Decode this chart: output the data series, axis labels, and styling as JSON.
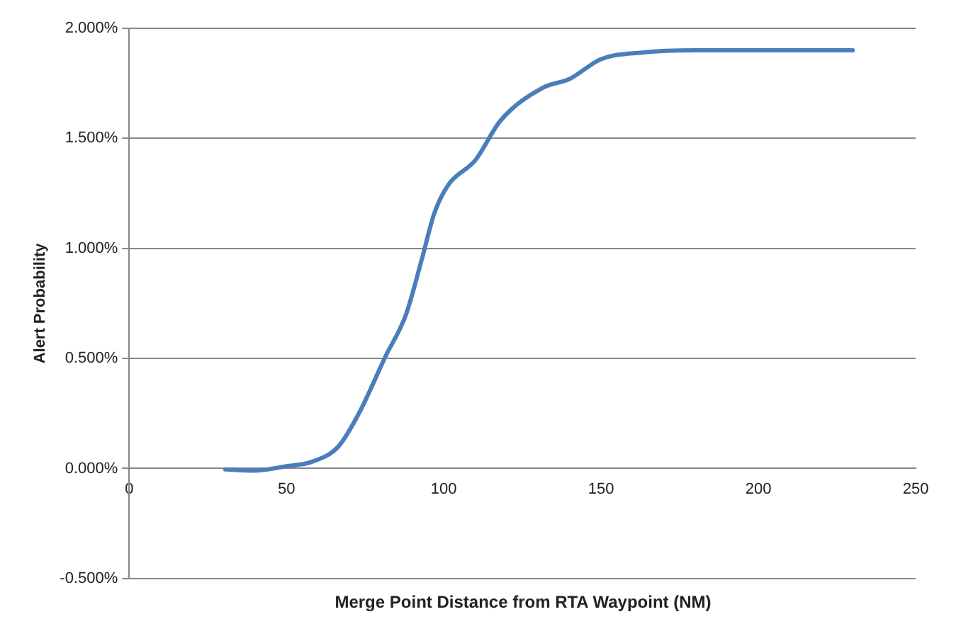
{
  "chart_data": {
    "type": "line",
    "xlabel": "Merge Point Distance from RTA Waypoint (NM)",
    "ylabel": "Alert Probability",
    "xlim": [
      0,
      250
    ],
    "xticks": [
      0,
      50,
      100,
      150,
      200,
      250
    ],
    "ylim": [
      -0.5,
      2
    ],
    "yticks": [
      {
        "value": -0.5,
        "label": "-0.500%"
      },
      {
        "value": 0,
        "label": "0.000%"
      },
      {
        "value": 0.5,
        "label": "0.500%"
      },
      {
        "value": 1,
        "label": "1.000%"
      },
      {
        "value": 1.5,
        "label": "1.500%"
      },
      {
        "value": 2,
        "label": "2.000%"
      }
    ],
    "grid": "y",
    "legend": false,
    "marker": "none",
    "line_style": "solid",
    "series": [
      {
        "color": "#4a7ebb",
        "x": [
          30.5,
          39.7,
          50,
          58,
          66.5,
          73,
          81.5,
          88,
          93,
          97,
          101.5,
          110,
          118,
          131.5,
          140,
          150,
          163,
          180,
          196.5,
          230
        ],
        "values": [
          -0.004,
          -0.01,
          0.01,
          0.03,
          0.1,
          0.25,
          0.51,
          0.7,
          0.95,
          1.16,
          1.29,
          1.4,
          1.58,
          1.73,
          1.77,
          1.86,
          1.89,
          1.9,
          1.9,
          1.9
        ]
      }
    ]
  }
}
